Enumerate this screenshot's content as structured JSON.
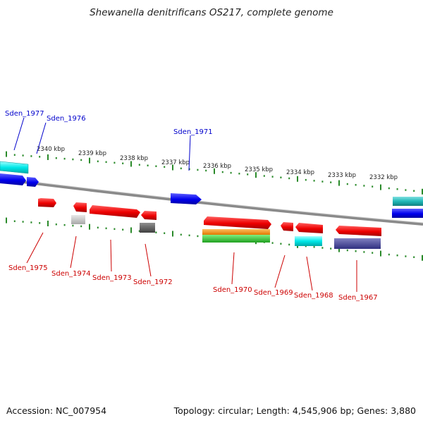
{
  "title": "Shewanella denitrificans OS217, complete genome",
  "footer": {
    "accession": "Accession: NC_007954",
    "summary": "Topology: circular; Length: 4,545,906 bp; Genes: 3,880"
  },
  "colors": {
    "backbone": "#8a8a8a",
    "tick": "#2a8a2a",
    "label_top": "#0000cc",
    "label_bottom": "#cc0000"
  },
  "scale_labels": [
    "2340 kbp",
    "2339 kbp",
    "2338 kbp",
    "2337 kbp",
    "2336 kbp",
    "2335 kbp",
    "2334 kbp",
    "2333 kbp",
    "2332 kbp"
  ],
  "genes": {
    "top": [
      "Sden_1977",
      "Sden_1976",
      "Sden_1971"
    ],
    "bottom": [
      "Sden_1975",
      "Sden_1974",
      "Sden_1973",
      "Sden_1972",
      "Sden_1970",
      "Sden_1969",
      "Sden_1968",
      "Sden_1967"
    ]
  }
}
